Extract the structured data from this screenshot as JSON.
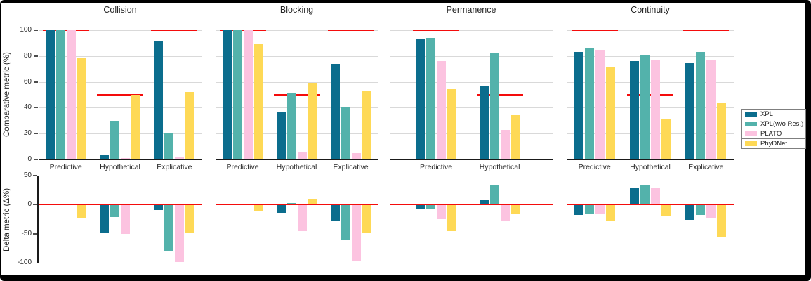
{
  "figure": {
    "top_axis_label": "Comparative metric (%)",
    "bottom_axis_label": "Delta metric (Δ%)"
  },
  "series": [
    {
      "name": "XPL",
      "color": "#0b6d8d"
    },
    {
      "name": "XPL(w/o Res.)",
      "color": "#53b2ab"
    },
    {
      "name": "PLATO",
      "color": "#fcc3e0"
    },
    {
      "name": "PhyDNet",
      "color": "#fed956"
    }
  ],
  "colors": {
    "target_line": "#f40c0c",
    "grid": "#d9d9d9",
    "axis": "#1a1a1a",
    "text": "#262626",
    "frame": "#000000",
    "legend_border": "#7f7f7f"
  },
  "chart_data": {
    "type": "bar",
    "title": "",
    "legend_position": "right",
    "grid": "horizontal, top chart only",
    "top_chart": {
      "ylabel": "Comparative metric (%)",
      "ticks": [
        0,
        20,
        40,
        60,
        80,
        100
      ],
      "ylim": [
        0,
        105
      ]
    },
    "bottom_chart": {
      "ylabel": "Delta metric (Δ%)",
      "ticks": [
        50,
        0,
        -50,
        -100
      ],
      "ylim": [
        -107,
        55
      ],
      "note": "red line at 0; delta = comparative - target"
    },
    "series_names": [
      "XPL",
      "XPL(w/o Res.)",
      "PLATO",
      "PhyDNet"
    ],
    "panels": [
      {
        "title": "Collision",
        "groups": [
          {
            "label": "Predictive",
            "target": 100,
            "comparative": [
              100,
              100,
              100,
              78
            ],
            "delta": [
              0,
              0,
              0,
              -22
            ]
          },
          {
            "label": "Hypothetical",
            "target": 50,
            "comparative": [
              3,
              30,
              1,
              50
            ],
            "delta": [
              -47,
              -20,
              -49,
              0
            ]
          },
          {
            "label": "Explicative",
            "target": 100,
            "comparative": [
              92,
              20,
              2,
              52
            ],
            "delta": [
              -8,
              -80,
              -98,
              -48
            ]
          }
        ]
      },
      {
        "title": "Blocking",
        "groups": [
          {
            "label": "Predictive",
            "target": 100,
            "comparative": [
              100,
              100,
              100,
              89
            ],
            "delta": [
              0,
              0,
              0,
              -11
            ]
          },
          {
            "label": "Hypothetical",
            "target": 50,
            "comparative": [
              37,
              51,
              6,
              59
            ],
            "delta": [
              -13,
              1,
              -44,
              9
            ]
          },
          {
            "label": "Explicative",
            "target": 100,
            "comparative": [
              74,
              40,
              5,
              53
            ],
            "delta": [
              -26,
              -60,
              -95,
              -47
            ]
          }
        ]
      },
      {
        "title": "Permanence",
        "groups": [
          {
            "label": "Predictive",
            "target": 100,
            "comparative": [
              93,
              94,
              76,
              55
            ],
            "delta": [
              -7,
              -6,
              -24,
              -45
            ]
          },
          {
            "label": "Hypothetical",
            "target": 50,
            "comparative": [
              57,
              82,
              23,
              34
            ],
            "delta": [
              7,
              32,
              -27,
              -16
            ]
          }
        ]
      },
      {
        "title": "Continuity",
        "groups": [
          {
            "label": "Predictive",
            "target": 100,
            "comparative": [
              83,
              86,
              85,
              72
            ],
            "delta": [
              -17,
              -14,
              -15,
              -28
            ]
          },
          {
            "label": "Hypothetical",
            "target": 50,
            "comparative": [
              76,
              81,
              77,
              31
            ],
            "delta": [
              26,
              31,
              27,
              -19
            ]
          },
          {
            "label": "Explicative",
            "target": 100,
            "comparative": [
              75,
              83,
              77,
              44
            ],
            "delta": [
              -25,
              -17,
              -23,
              -56
            ]
          }
        ]
      }
    ]
  },
  "legend": {
    "items": [
      "XPL",
      "XPL(w/o Res.)",
      "PLATO",
      "PhyDNet"
    ]
  }
}
